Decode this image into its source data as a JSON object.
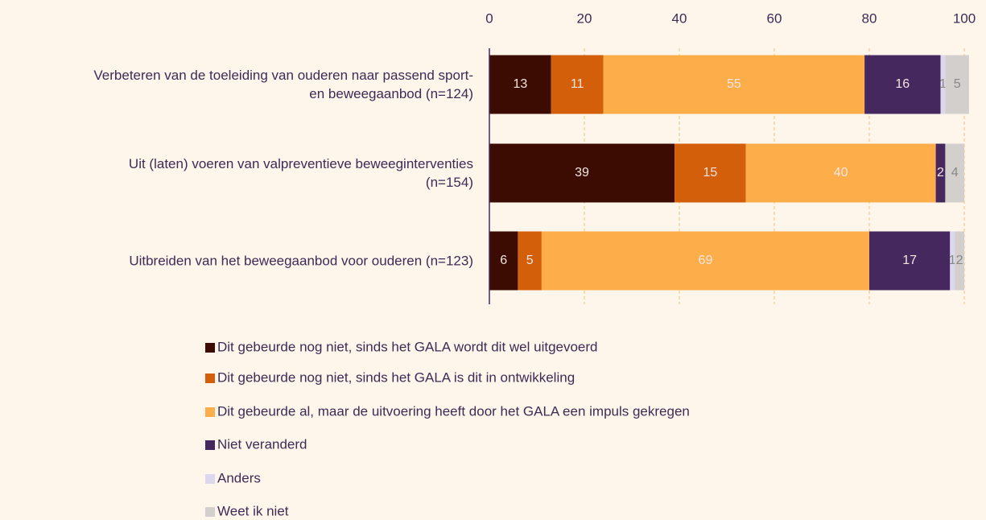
{
  "chart_data": {
    "type": "stacked-barh",
    "categories": [
      "Verbeteren van de toeleiding van ouderen naar passend sport-\nen beweegaanbod (n=124)",
      "Uit (laten) voeren van valpreventieve beweeginterventies\n(n=154)",
      "Uitbreiden van het beweegaanbod voor ouderen (n=123)"
    ],
    "series": [
      {
        "name": "Dit gebeurde nog niet, sinds het GALA wordt dit wel uitgevoerd",
        "color": "#3c0b02",
        "values": [
          13,
          39,
          6
        ]
      },
      {
        "name": "Dit gebeurde nog niet, sinds het GALA is dit in ontwikkeling",
        "color": "#d35f0a",
        "values": [
          11,
          15,
          5
        ]
      },
      {
        "name": "Dit gebeurde al, maar de uitvoering heeft door het GALA een impuls gekregen",
        "color": "#fdae4b",
        "values": [
          55,
          40,
          69
        ]
      },
      {
        "name": "Niet veranderd",
        "color": "#45295e",
        "values": [
          16,
          2,
          17
        ]
      },
      {
        "name": "Anders",
        "color": "#dcd6ee",
        "values": [
          1,
          0,
          1
        ]
      },
      {
        "name": "Weet ik niet",
        "color": "#d2cfcd",
        "values": [
          5,
          4,
          2
        ]
      }
    ],
    "xlim": [
      0,
      100
    ],
    "xticks": [
      0,
      20,
      40,
      60,
      80,
      100
    ],
    "grid": true
  }
}
